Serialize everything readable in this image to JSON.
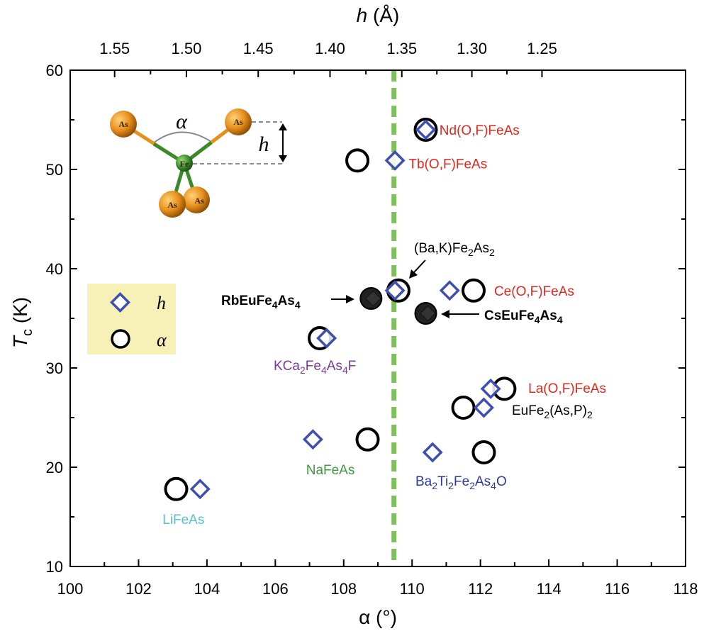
{
  "chart_data": {
    "type": "scatter",
    "title": "",
    "xlabel": "α (°)",
    "ylabel_main": "T",
    "ylabel_sub": "c",
    "ylabel_unit": " (K)",
    "x2label_var": "h",
    "x2label_unit": " (Å)",
    "xlim": [
      100,
      118
    ],
    "ylim": [
      10,
      60
    ],
    "x_ticks": [
      "100",
      "102",
      "104",
      "106",
      "108",
      "110",
      "112",
      "114",
      "116",
      "118"
    ],
    "y_ticks": [
      "10",
      "20",
      "30",
      "40",
      "50",
      "60"
    ],
    "top_axis": {
      "label_positions_alpha": [
        101.3,
        103.4,
        105.5,
        107.6,
        109.5,
        111.5,
        113.6,
        115.7
      ],
      "tick_labels": [
        "1.55",
        "1.50",
        "1.45",
        "1.40",
        "1.35",
        "1.30",
        "1.25"
      ],
      "tick_alpha": [
        101.3,
        103.4,
        105.5,
        107.6,
        109.7,
        111.75,
        113.8
      ]
    },
    "reference_line": {
      "alpha": 109.47,
      "color": "#7fbf5f"
    },
    "series": [
      {
        "name": "h",
        "marker": "diamond",
        "color": "#3f4fb0",
        "points": [
          {
            "x": 110.4,
            "y": 54.0
          },
          {
            "x": 109.5,
            "y": 50.9
          },
          {
            "x": 109.5,
            "y": 37.8
          },
          {
            "x": 111.1,
            "y": 37.8
          },
          {
            "x": 107.5,
            "y": 33.0
          },
          {
            "x": 112.3,
            "y": 27.9
          },
          {
            "x": 112.1,
            "y": 26.0
          },
          {
            "x": 107.1,
            "y": 22.8
          },
          {
            "x": 110.6,
            "y": 21.5
          },
          {
            "x": 103.8,
            "y": 17.8
          }
        ]
      },
      {
        "name": "α",
        "marker": "circle",
        "color": "#000000",
        "points": [
          {
            "x": 110.4,
            "y": 54.0
          },
          {
            "x": 108.4,
            "y": 50.9
          },
          {
            "x": 109.6,
            "y": 37.8
          },
          {
            "x": 111.8,
            "y": 37.8
          },
          {
            "x": 107.3,
            "y": 33.0
          },
          {
            "x": 112.7,
            "y": 27.9
          },
          {
            "x": 111.5,
            "y": 26.0
          },
          {
            "x": 108.7,
            "y": 22.8
          },
          {
            "x": 112.1,
            "y": 21.5
          },
          {
            "x": 103.1,
            "y": 17.8
          }
        ]
      },
      {
        "name": "filled",
        "marker": "filled-circle",
        "color": "#222222",
        "points": [
          {
            "x": 108.8,
            "y": 37.0
          },
          {
            "x": 110.4,
            "y": 35.5
          }
        ]
      }
    ],
    "labels": [
      {
        "id": "nd",
        "text": "Nd(O,F)FeAs",
        "sub": "",
        "color": "#e0281e",
        "x": 110.8,
        "y": 54.0,
        "bold": false
      },
      {
        "id": "tb",
        "text": "Tb(O,F)FeAs",
        "sub": "",
        "color": "#e0281e",
        "x": 109.9,
        "y": 50.6,
        "bold": false
      },
      {
        "id": "ce",
        "text": "Ce(O,F)FeAs",
        "sub": "",
        "color": "#e0281e",
        "x": 112.4,
        "y": 37.8,
        "bold": false
      },
      {
        "id": "la",
        "text": "La(O,F)FeAs",
        "sub": "",
        "color": "#e0281e",
        "x": 113.4,
        "y": 28.0,
        "bold": false
      },
      {
        "id": "lifeas",
        "text": "LiFeAs",
        "sub": "",
        "color": "#5bbfcf",
        "x": 102.7,
        "y": 14.8,
        "bold": false
      },
      {
        "id": "nafeas",
        "text": "NaFeAs",
        "sub": "",
        "color": "#3d9a3d",
        "x": 106.9,
        "y": 19.8,
        "bold": false
      }
    ],
    "formula_labels": {
      "bak": {
        "p1": "(Ba,K)Fe",
        "s1": "2",
        "p2": "As",
        "s2": "2",
        "color": "#000000"
      },
      "rb": {
        "p1": "RbEuFe",
        "s1": "4",
        "p2": "As",
        "s2": "4",
        "color": "#000000"
      },
      "cs": {
        "p1": "CsEuFe",
        "s1": "4",
        "p2": "As",
        "s2": "4",
        "color": "#000000"
      },
      "kca": {
        "p1": "KCa",
        "s1": "2",
        "p2": "Fe",
        "s2": "4",
        "p3": "As",
        "s3": "4",
        "p4": "F",
        "color": "#7a3a9a"
      },
      "eu": {
        "p1": "EuFe",
        "s1": "2",
        "p2": "(As,P)",
        "s2": "2",
        "color": "#000000"
      },
      "ba": {
        "p1": "Ba",
        "s1": "2",
        "p2": "Ti",
        "s2": "2",
        "p3": "Fe",
        "s3": "2",
        "p4": "As",
        "s4": "4",
        "p5": "O",
        "color": "#2f3a9a"
      }
    },
    "legend": {
      "placement": "left-middle",
      "entries": [
        {
          "marker": "diamond",
          "label": "h"
        },
        {
          "marker": "circle",
          "label": "α"
        }
      ]
    },
    "inset": {
      "alpha_symbol": "α",
      "h_symbol": "h",
      "atoms": [
        "As",
        "As",
        "Fe",
        "As",
        "As"
      ]
    }
  }
}
